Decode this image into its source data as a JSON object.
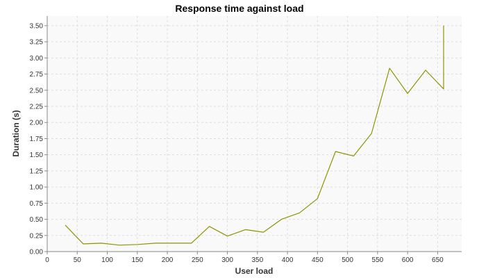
{
  "chart_data": {
    "type": "line",
    "title": "Response time against load",
    "xlabel": "User load",
    "ylabel": "Duration (s)",
    "xlim": [
      0,
      690
    ],
    "ylim": [
      0,
      3.65
    ],
    "xticks": [
      "0",
      "50",
      "100",
      "150",
      "200",
      "250",
      "300",
      "350",
      "400",
      "450",
      "500",
      "550",
      "600",
      "650"
    ],
    "xtick_values": [
      0,
      50,
      100,
      150,
      200,
      250,
      300,
      350,
      400,
      450,
      500,
      550,
      600,
      650
    ],
    "yticks": [
      "0.00",
      "0.25",
      "0.50",
      "0.75",
      "1.00",
      "1.25",
      "1.50",
      "1.75",
      "2.00",
      "2.25",
      "2.50",
      "2.75",
      "3.00",
      "3.25",
      "3.50"
    ],
    "ytick_values": [
      0,
      0.25,
      0.5,
      0.75,
      1.0,
      1.25,
      1.5,
      1.75,
      2.0,
      2.25,
      2.5,
      2.75,
      3.0,
      3.25,
      3.5
    ],
    "grid": true,
    "legend": "none",
    "series": [
      {
        "color": "#8c9400",
        "x": [
          30,
          60,
          90,
          120,
          150,
          180,
          210,
          240,
          270,
          300,
          330,
          360,
          390,
          420,
          450,
          480,
          510,
          540,
          570,
          600,
          630,
          660,
          660
        ],
        "y": [
          0.41,
          0.12,
          0.13,
          0.1,
          0.11,
          0.13,
          0.13,
          0.13,
          0.39,
          0.24,
          0.34,
          0.3,
          0.5,
          0.6,
          0.82,
          1.55,
          1.48,
          1.83,
          2.84,
          2.45,
          2.81,
          2.52,
          3.5
        ]
      }
    ]
  }
}
